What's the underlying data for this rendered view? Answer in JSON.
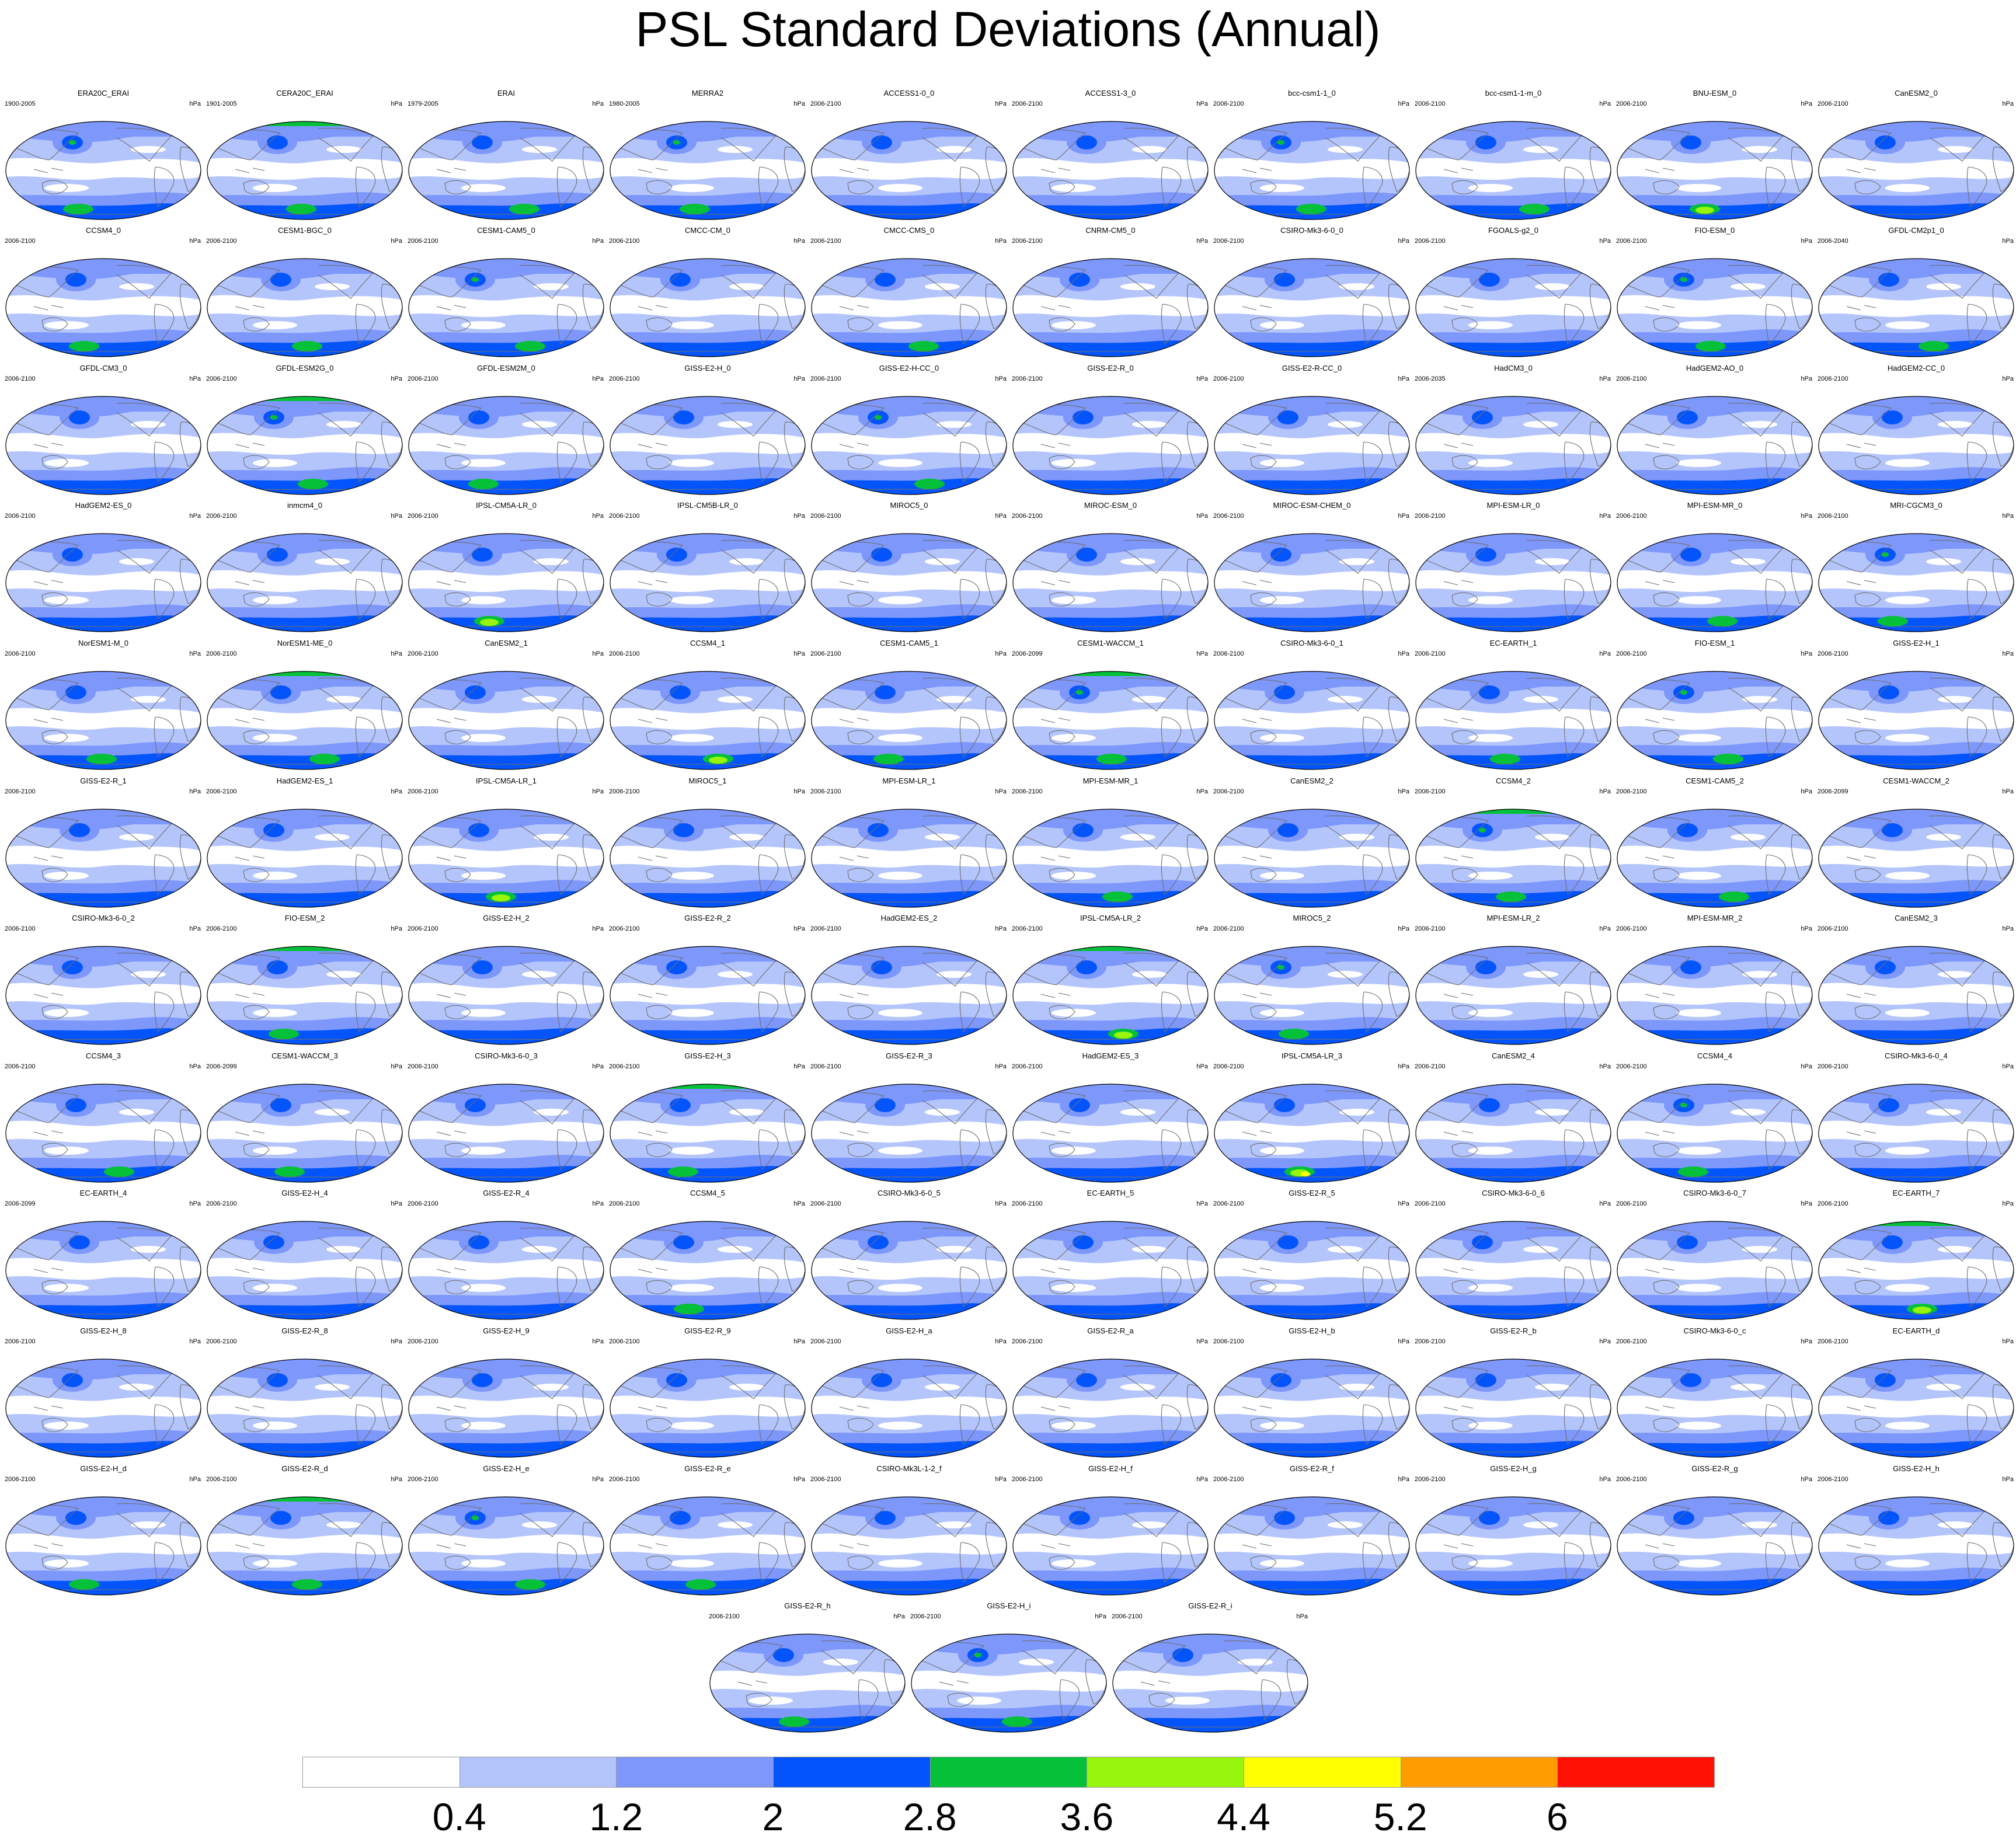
{
  "title": "PSL Standard Deviations (Annual)",
  "unit_label": "hPa",
  "colors": {
    "levels": [
      "#ffffff",
      "#b4c5fc",
      "#7d97fb",
      "#0355fb",
      "#04c139",
      "#98f50d",
      "#ffff02",
      "#ff9c02",
      "#ff1205"
    ],
    "coast": "#6e6e6e"
  },
  "colorbar_ticks": [
    "0.4",
    "1.2",
    "2",
    "2.8",
    "3.6",
    "4.4",
    "5.2",
    "6"
  ],
  "chart_data": {
    "type": "heatmap",
    "title": "PSL Standard Deviations (Annual)",
    "units": "hPa",
    "contour_levels": [
      0.4,
      1.2,
      2,
      2.8,
      3.6,
      4.4,
      5.2,
      6
    ],
    "panels": [
      {
        "name": "ERA20C_ERAI",
        "period": "1900-2005",
        "peak_class": 4
      },
      {
        "name": "CERA20C_ERAI",
        "period": "1901-2005",
        "peak_class": 4
      },
      {
        "name": "ERAI",
        "period": "1979-2005",
        "peak_class": 4
      },
      {
        "name": "MERRA2",
        "period": "1980-2005",
        "peak_class": 4
      },
      {
        "name": "ACCESS1-0_0",
        "period": "2006-2100",
        "peak_class": 3
      },
      {
        "name": "ACCESS1-3_0",
        "period": "2006-2100",
        "peak_class": 3
      },
      {
        "name": "bcc-csm1-1_0",
        "period": "2006-2100",
        "peak_class": 4
      },
      {
        "name": "bcc-csm1-1-m_0",
        "period": "2006-2100",
        "peak_class": 4
      },
      {
        "name": "BNU-ESM_0",
        "period": "2006-2100",
        "peak_class": 5
      },
      {
        "name": "CanESM2_0",
        "period": "2006-2100",
        "peak_class": 3
      },
      {
        "name": "CCSM4_0",
        "period": "2006-2100",
        "peak_class": 4
      },
      {
        "name": "CESM1-BGC_0",
        "period": "2006-2100",
        "peak_class": 4
      },
      {
        "name": "CESM1-CAM5_0",
        "period": "2006-2100",
        "peak_class": 4
      },
      {
        "name": "CMCC-CM_0",
        "period": "2006-2100",
        "peak_class": 3
      },
      {
        "name": "CMCC-CMS_0",
        "period": "2006-2100",
        "peak_class": 4
      },
      {
        "name": "CNRM-CM5_0",
        "period": "2006-2100",
        "peak_class": 3
      },
      {
        "name": "CSIRO-Mk3-6-0_0",
        "period": "2006-2100",
        "peak_class": 3
      },
      {
        "name": "FGOALS-g2_0",
        "period": "2006-2100",
        "peak_class": 3
      },
      {
        "name": "FIO-ESM_0",
        "period": "2006-2100",
        "peak_class": 4
      },
      {
        "name": "GFDL-CM2p1_0",
        "period": "2006-2040",
        "peak_class": 4
      },
      {
        "name": "GFDL-CM3_0",
        "period": "2006-2100",
        "peak_class": 3
      },
      {
        "name": "GFDL-ESM2G_0",
        "period": "2006-2100",
        "peak_class": 4
      },
      {
        "name": "GFDL-ESM2M_0",
        "period": "2006-2100",
        "peak_class": 4
      },
      {
        "name": "GISS-E2-H_0",
        "period": "2006-2100",
        "peak_class": 3
      },
      {
        "name": "GISS-E2-H-CC_0",
        "period": "2006-2100",
        "peak_class": 4
      },
      {
        "name": "GISS-E2-R_0",
        "period": "2006-2100",
        "peak_class": 3
      },
      {
        "name": "GISS-E2-R-CC_0",
        "period": "2006-2100",
        "peak_class": 3
      },
      {
        "name": "HadCM3_0",
        "period": "2006-2035",
        "peak_class": 3
      },
      {
        "name": "HadGEM2-AO_0",
        "period": "2006-2100",
        "peak_class": 3
      },
      {
        "name": "HadGEM2-CC_0",
        "period": "2006-2100",
        "peak_class": 3
      },
      {
        "name": "HadGEM2-ES_0",
        "period": "2006-2100",
        "peak_class": 3
      },
      {
        "name": "inmcm4_0",
        "period": "2006-2100",
        "peak_class": 2
      },
      {
        "name": "IPSL-CM5A-LR_0",
        "period": "2006-2100",
        "peak_class": 5
      },
      {
        "name": "IPSL-CM5B-LR_0",
        "period": "2006-2100",
        "peak_class": 3
      },
      {
        "name": "MIROC5_0",
        "period": "2006-2100",
        "peak_class": 3
      },
      {
        "name": "MIROC-ESM_0",
        "period": "2006-2100",
        "peak_class": 3
      },
      {
        "name": "MIROC-ESM-CHEM_0",
        "period": "2006-2100",
        "peak_class": 3
      },
      {
        "name": "MPI-ESM-LR_0",
        "period": "2006-2100",
        "peak_class": 3
      },
      {
        "name": "MPI-ESM-MR_0",
        "period": "2006-2100",
        "peak_class": 4
      },
      {
        "name": "MRI-CGCM3_0",
        "period": "2006-2100",
        "peak_class": 4
      },
      {
        "name": "NorESM1-M_0",
        "period": "2006-2100",
        "peak_class": 4
      },
      {
        "name": "NorESM1-ME_0",
        "period": "2006-2100",
        "peak_class": 4
      },
      {
        "name": "CanESM2_1",
        "period": "2006-2100",
        "peak_class": 3
      },
      {
        "name": "CCSM4_1",
        "period": "2006-2100",
        "peak_class": 5
      },
      {
        "name": "CESM1-CAM5_1",
        "period": "2006-2100",
        "peak_class": 4
      },
      {
        "name": "CESM1-WACCM_1",
        "period": "2006-2099",
        "peak_class": 4
      },
      {
        "name": "CSIRO-Mk3-6-0_1",
        "period": "2006-2100",
        "peak_class": 3
      },
      {
        "name": "EC-EARTH_1",
        "period": "2006-2100",
        "peak_class": 4
      },
      {
        "name": "FIO-ESM_1",
        "period": "2006-2100",
        "peak_class": 4
      },
      {
        "name": "GISS-E2-H_1",
        "period": "2006-2100",
        "peak_class": 3
      },
      {
        "name": "GISS-E2-R_1",
        "period": "2006-2100",
        "peak_class": 3
      },
      {
        "name": "HadGEM2-ES_1",
        "period": "2006-2100",
        "peak_class": 3
      },
      {
        "name": "IPSL-CM5A-LR_1",
        "period": "2006-2100",
        "peak_class": 5
      },
      {
        "name": "MIROC5_1",
        "period": "2006-2100",
        "peak_class": 3
      },
      {
        "name": "MPI-ESM-LR_1",
        "period": "2006-2100",
        "peak_class": 3
      },
      {
        "name": "MPI-ESM-MR_1",
        "period": "2006-2100",
        "peak_class": 4
      },
      {
        "name": "CanESM2_2",
        "period": "2006-2100",
        "peak_class": 3
      },
      {
        "name": "CCSM4_2",
        "period": "2006-2100",
        "peak_class": 4
      },
      {
        "name": "CESM1-CAM5_2",
        "period": "2006-2100",
        "peak_class": 4
      },
      {
        "name": "CESM1-WACCM_2",
        "period": "2006-2099",
        "peak_class": 3
      },
      {
        "name": "CSIRO-Mk3-6-0_2",
        "period": "2006-2100",
        "peak_class": 3
      },
      {
        "name": "FIO-ESM_2",
        "period": "2006-2100",
        "peak_class": 4
      },
      {
        "name": "GISS-E2-H_2",
        "period": "2006-2100",
        "peak_class": 3
      },
      {
        "name": "GISS-E2-R_2",
        "period": "2006-2100",
        "peak_class": 3
      },
      {
        "name": "HadGEM2-ES_2",
        "period": "2006-2100",
        "peak_class": 3
      },
      {
        "name": "IPSL-CM5A-LR_2",
        "period": "2006-2100",
        "peak_class": 5
      },
      {
        "name": "MIROC5_2",
        "period": "2006-2100",
        "peak_class": 4
      },
      {
        "name": "MPI-ESM-LR_2",
        "period": "2006-2100",
        "peak_class": 3
      },
      {
        "name": "MPI-ESM-MR_2",
        "period": "2006-2100",
        "peak_class": 3
      },
      {
        "name": "CanESM2_3",
        "period": "2006-2100",
        "peak_class": 3
      },
      {
        "name": "CCSM4_3",
        "period": "2006-2100",
        "peak_class": 4
      },
      {
        "name": "CESM1-WACCM_3",
        "period": "2006-2099",
        "peak_class": 4
      },
      {
        "name": "CSIRO-Mk3-6-0_3",
        "period": "2006-2100",
        "peak_class": 3
      },
      {
        "name": "GISS-E2-H_3",
        "period": "2006-2100",
        "peak_class": 4
      },
      {
        "name": "GISS-E2-R_3",
        "period": "2006-2100",
        "peak_class": 3
      },
      {
        "name": "HadGEM2-ES_3",
        "period": "2006-2100",
        "peak_class": 3
      },
      {
        "name": "IPSL-CM5A-LR_3",
        "period": "2006-2100",
        "peak_class": 6
      },
      {
        "name": "CanESM2_4",
        "period": "2006-2100",
        "peak_class": 3
      },
      {
        "name": "CCSM4_4",
        "period": "2006-2100",
        "peak_class": 4
      },
      {
        "name": "CSIRO-Mk3-6-0_4",
        "period": "2006-2100",
        "peak_class": 3
      },
      {
        "name": "EC-EARTH_4",
        "period": "2006-2099",
        "peak_class": 3
      },
      {
        "name": "GISS-E2-H_4",
        "period": "2006-2100",
        "peak_class": 3
      },
      {
        "name": "GISS-E2-R_4",
        "period": "2006-2100",
        "peak_class": 3
      },
      {
        "name": "CCSM4_5",
        "period": "2006-2100",
        "peak_class": 4
      },
      {
        "name": "CSIRO-Mk3-6-0_5",
        "period": "2006-2100",
        "peak_class": 3
      },
      {
        "name": "EC-EARTH_5",
        "period": "2006-2100",
        "peak_class": 3
      },
      {
        "name": "GISS-E2-R_5",
        "period": "2006-2100",
        "peak_class": 3
      },
      {
        "name": "CSIRO-Mk3-6-0_6",
        "period": "2006-2100",
        "peak_class": 3
      },
      {
        "name": "CSIRO-Mk3-6-0_7",
        "period": "2006-2100",
        "peak_class": 3
      },
      {
        "name": "EC-EARTH_7",
        "period": "2006-2100",
        "peak_class": 5
      },
      {
        "name": "GISS-E2-H_8",
        "period": "2006-2100",
        "peak_class": 3
      },
      {
        "name": "GISS-E2-R_8",
        "period": "2006-2100",
        "peak_class": 3
      },
      {
        "name": "GISS-E2-H_9",
        "period": "2006-2100",
        "peak_class": 3
      },
      {
        "name": "GISS-E2-R_9",
        "period": "2006-2100",
        "peak_class": 3
      },
      {
        "name": "GISS-E2-H_a",
        "period": "2006-2100",
        "peak_class": 3
      },
      {
        "name": "GISS-E2-R_a",
        "period": "2006-2100",
        "peak_class": 3
      },
      {
        "name": "GISS-E2-H_b",
        "period": "2006-2100",
        "peak_class": 3
      },
      {
        "name": "GISS-E2-R_b",
        "period": "2006-2100",
        "peak_class": 3
      },
      {
        "name": "CSIRO-Mk3-6-0_c",
        "period": "2006-2100",
        "peak_class": 3
      },
      {
        "name": "EC-EARTH_d",
        "period": "2006-2100",
        "peak_class": 3
      },
      {
        "name": "GISS-E2-H_d",
        "period": "2006-2100",
        "peak_class": 4
      },
      {
        "name": "GISS-E2-R_d",
        "period": "2006-2100",
        "peak_class": 4
      },
      {
        "name": "GISS-E2-H_e",
        "period": "2006-2100",
        "peak_class": 4
      },
      {
        "name": "GISS-E2-R_e",
        "period": "2006-2100",
        "peak_class": 4
      },
      {
        "name": "CSIRO-Mk3L-1-2_f",
        "period": "2006-2100",
        "peak_class": 3
      },
      {
        "name": "GISS-E2-H_f",
        "period": "2006-2100",
        "peak_class": 3
      },
      {
        "name": "GISS-E2-R_f",
        "period": "2006-2100",
        "peak_class": 3
      },
      {
        "name": "GISS-E2-H_g",
        "period": "2006-2100",
        "peak_class": 3
      },
      {
        "name": "GISS-E2-R_g",
        "period": "2006-2100",
        "peak_class": 3
      },
      {
        "name": "GISS-E2-H_h",
        "period": "2006-2100",
        "peak_class": 3
      },
      {
        "name": "GISS-E2-R_h",
        "period": "2006-2100",
        "peak_class": 4
      },
      {
        "name": "GISS-E2-H_i",
        "period": "2006-2100",
        "peak_class": 4
      },
      {
        "name": "GISS-E2-R_i",
        "period": "2006-2100",
        "peak_class": 3
      }
    ]
  }
}
